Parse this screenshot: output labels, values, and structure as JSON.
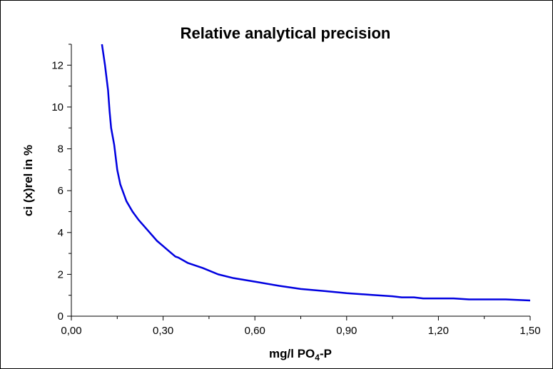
{
  "chart_data": {
    "type": "line",
    "title": "Relative analytical precision",
    "xlabel": "mg/l PO",
    "xlabel_sub": "4",
    "xlabel_suffix": "-P",
    "ylabel": "ci (x)rel in %",
    "xlim": [
      0,
      1.5
    ],
    "ylim": [
      0,
      13
    ],
    "x_ticks": [
      0,
      0.3,
      0.6,
      0.9,
      1.2,
      1.5
    ],
    "x_tick_labels": [
      "0,00",
      "0,30",
      "0,60",
      "0,90",
      "1,20",
      "1,50"
    ],
    "x_minor_step": 0.15,
    "y_ticks": [
      0,
      2,
      4,
      6,
      8,
      10,
      12
    ],
    "y_tick_labels": [
      "0",
      "2",
      "4",
      "6",
      "8",
      "10",
      "12"
    ],
    "y_minor_step": 1,
    "grid": false,
    "series": [
      {
        "color": "#0000e0",
        "x": [
          0.1,
          0.11,
          0.12,
          0.125,
          0.13,
          0.14,
          0.15,
          0.16,
          0.17,
          0.18,
          0.2,
          0.22,
          0.25,
          0.28,
          0.3,
          0.32,
          0.34,
          0.35,
          0.38,
          0.43,
          0.48,
          0.53,
          0.6,
          0.68,
          0.75,
          0.83,
          0.9,
          0.98,
          1.05,
          1.08,
          1.12,
          1.15,
          1.2,
          1.25,
          1.3,
          1.35,
          1.42,
          1.5
        ],
        "y": [
          13,
          12.0,
          10.8,
          9.8,
          9.0,
          8.2,
          7.0,
          6.3,
          5.9,
          5.5,
          5.0,
          4.6,
          4.1,
          3.6,
          3.35,
          3.1,
          2.85,
          2.8,
          2.55,
          2.3,
          2.0,
          1.82,
          1.65,
          1.45,
          1.3,
          1.2,
          1.1,
          1.02,
          0.95,
          0.9,
          0.9,
          0.85,
          0.85,
          0.85,
          0.8,
          0.8,
          0.8,
          0.75
        ]
      }
    ]
  },
  "colors": {
    "curve": "#0000e0",
    "axis": "#000000",
    "background": "#ffffff"
  }
}
